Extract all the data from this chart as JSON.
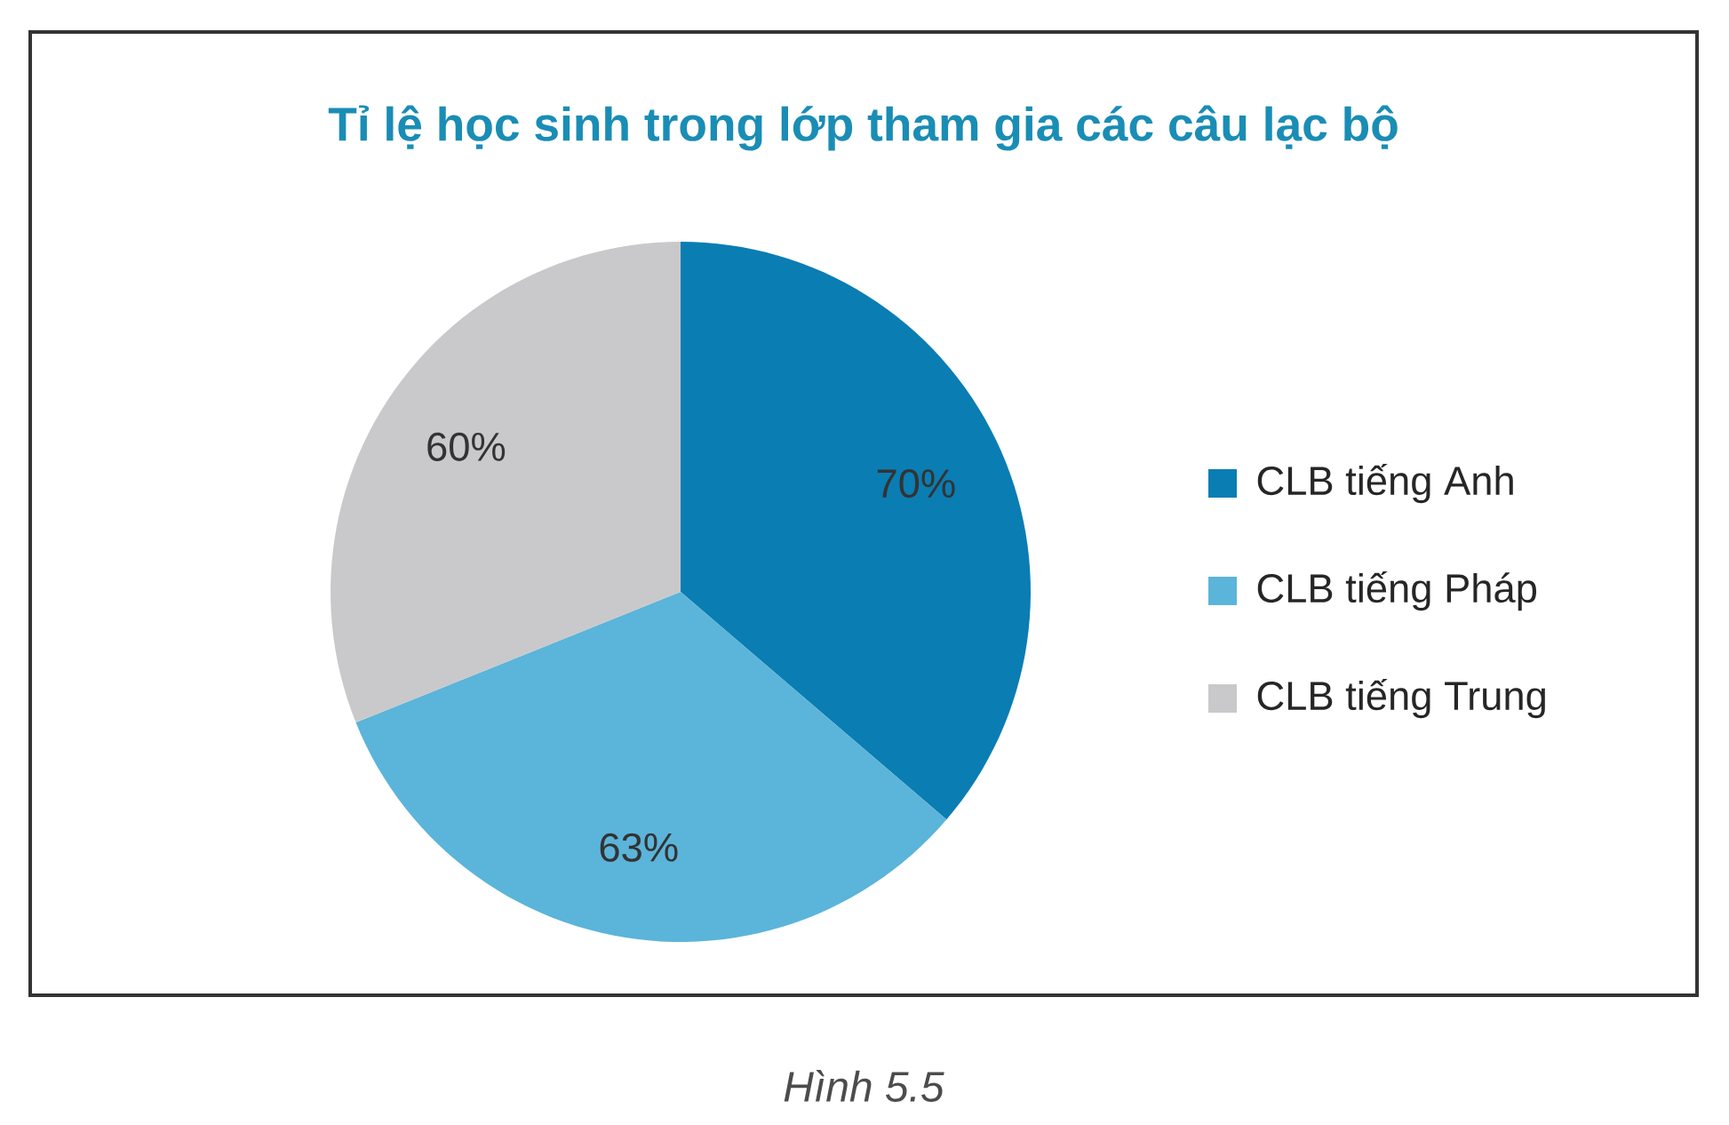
{
  "chart_data": {
    "type": "pie",
    "title": "Tỉ lệ học sinh trong lớp tham gia các câu lạc bộ",
    "categories": [
      "CLB tiếng Anh",
      "CLB tiếng Pháp",
      "CLB tiếng Trung"
    ],
    "values": [
      70,
      63,
      60
    ],
    "value_labels": [
      "70%",
      "63%",
      "60%"
    ],
    "colors": [
      "#0a7db3",
      "#5bb4da",
      "#c9c9cb"
    ],
    "legend": "right",
    "annotations": [
      "*Hình 5.5*"
    ]
  }
}
